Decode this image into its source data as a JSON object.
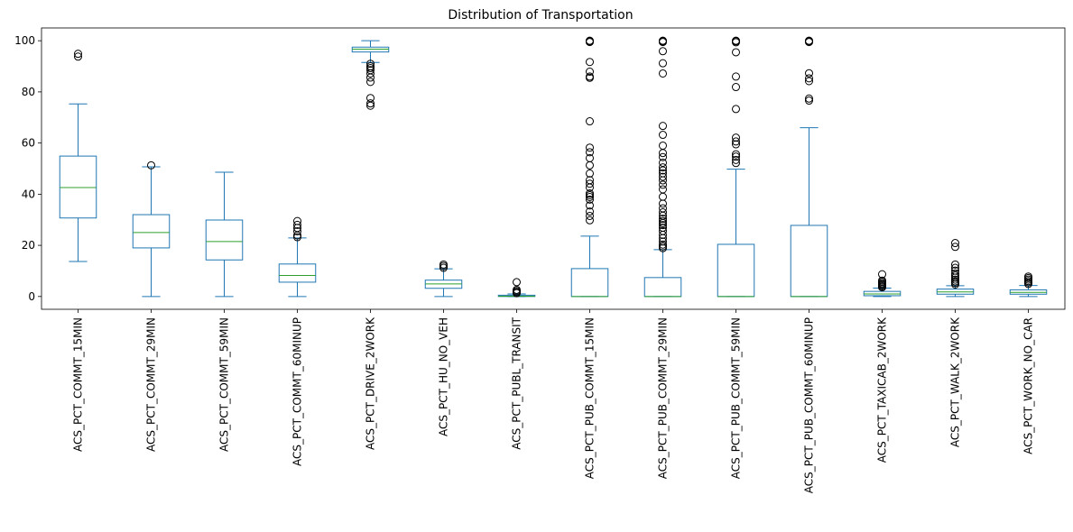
{
  "chart_data": {
    "type": "boxplot",
    "title": "Distribution of Transportation",
    "xlabel": "",
    "ylabel": "",
    "ylim": [
      -5,
      105
    ],
    "yticks": [
      0,
      20,
      40,
      60,
      80,
      100
    ],
    "grid": false,
    "legend": "none",
    "colors": {
      "box": "#1f77b4",
      "median": "#2ca02c",
      "outlier": "#000000"
    },
    "categories": [
      "ACS_PCT_COMMT_15MIN",
      "ACS_PCT_COMMT_29MIN",
      "ACS_PCT_COMMT_59MIN",
      "ACS_PCT_COMMT_60MINUP",
      "ACS_PCT_DRIVE_2WORK",
      "ACS_PCT_HU_NO_VEH",
      "ACS_PCT_PUBL_TRANSIT",
      "ACS_PCT_PUB_COMMT_15MIN",
      "ACS_PCT_PUB_COMMT_29MIN",
      "ACS_PCT_PUB_COMMT_59MIN",
      "ACS_PCT_PUB_COMMT_60MINUP",
      "ACS_PCT_TAXICAB_2WORK",
      "ACS_PCT_WALK_2WORK",
      "ACS_PCT_WORK_NO_CAR"
    ],
    "boxes": [
      {
        "whisker_low": 13.7,
        "q1": 30.7,
        "median": 42.6,
        "q3": 54.9,
        "whisker_high": 75.3,
        "outliers": [
          93.8,
          94.9
        ]
      },
      {
        "whisker_low": 0,
        "q1": 19.0,
        "median": 25.0,
        "q3": 32.0,
        "whisker_high": 50.7,
        "outliers": [
          51.3
        ]
      },
      {
        "whisker_low": 0,
        "q1": 14.3,
        "median": 21.5,
        "q3": 29.9,
        "whisker_high": 48.6,
        "outliers": []
      },
      {
        "whisker_low": 0,
        "q1": 5.6,
        "median": 8.2,
        "q3": 12.7,
        "whisker_high": 22.9,
        "outliers": [
          23.2,
          23.9,
          25.5,
          26.8,
          28.0,
          29.5
        ]
      },
      {
        "whisker_low": 91.5,
        "q1": 95.6,
        "median": 96.7,
        "q3": 97.5,
        "whisker_high": 100,
        "outliers": [
          74.6,
          75.5,
          77.6,
          83.9,
          85.6,
          87.2,
          88.5,
          89.3,
          90.0,
          91.0
        ]
      },
      {
        "whisker_low": 0,
        "q1": 3.2,
        "median": 4.9,
        "q3": 6.4,
        "whisker_high": 10.8,
        "outliers": [
          11.2,
          11.9,
          12.5
        ]
      },
      {
        "whisker_low": 0,
        "q1": 0,
        "median": 0.1,
        "q3": 0.5,
        "whisker_high": 1.0,
        "outliers": [
          1.3,
          1.7,
          2.1,
          2.6,
          5.6
        ]
      },
      {
        "whisker_low": 0,
        "q1": 0,
        "median": 0,
        "q3": 10.9,
        "whisker_high": 23.6,
        "outliers": [
          29.8,
          31.5,
          33.2,
          35.6,
          37.9,
          38.9,
          39.6,
          40.3,
          42.6,
          44.1,
          45.5,
          48.1,
          51.3,
          54.1,
          56.4,
          58.2,
          68.5,
          85.5,
          86.0,
          87.9,
          91.7,
          99.5,
          99.8,
          100
        ]
      },
      {
        "whisker_low": 0,
        "q1": 0,
        "median": 0,
        "q3": 7.4,
        "whisker_high": 18.3,
        "outliers": [
          18.9,
          19.6,
          20.3,
          21.5,
          22.8,
          24.1,
          25.6,
          26.9,
          27.9,
          28.7,
          29.5,
          30.4,
          31.6,
          32.9,
          34.5,
          36.3,
          39.0,
          41.9,
          43.7,
          45.4,
          46.8,
          48.2,
          49.3,
          50.5,
          52.3,
          54.5,
          56.1,
          59.0,
          63.2,
          66.7,
          87.2,
          91.2,
          95.9,
          99.5,
          99.8,
          100
        ]
      },
      {
        "whisker_low": 0,
        "q1": 0,
        "median": 0,
        "q3": 20.4,
        "whisker_high": 49.8,
        "outliers": [
          52.2,
          53.4,
          54.7,
          55.6,
          59.5,
          60.6,
          62.1,
          73.3,
          81.9,
          86.0,
          95.5,
          99.4,
          99.8,
          100
        ]
      },
      {
        "whisker_low": 0,
        "q1": 0,
        "median": 0,
        "q3": 27.8,
        "whisker_high": 66.0,
        "outliers": [
          76.6,
          77.4,
          84.2,
          85.3,
          87.3,
          99.5,
          99.8,
          100
        ]
      },
      {
        "whisker_low": 0,
        "q1": 0.3,
        "median": 1.0,
        "q3": 2.0,
        "whisker_high": 3.3,
        "outliers": [
          3.6,
          4.0,
          4.4,
          4.8,
          5.2,
          5.7,
          6.2,
          8.7
        ]
      },
      {
        "whisker_low": 0,
        "q1": 0.9,
        "median": 1.8,
        "q3": 2.9,
        "whisker_high": 4.2,
        "outliers": [
          4.7,
          5.3,
          5.9,
          6.6,
          7.4,
          8.2,
          9.0,
          10.1,
          11.2,
          12.5,
          19.4,
          20.9
        ]
      },
      {
        "whisker_low": 0,
        "q1": 0.9,
        "median": 1.6,
        "q3": 2.6,
        "whisker_high": 4.3,
        "outliers": [
          4.9,
          5.5,
          6.0,
          6.6,
          7.2,
          7.8
        ]
      }
    ]
  }
}
